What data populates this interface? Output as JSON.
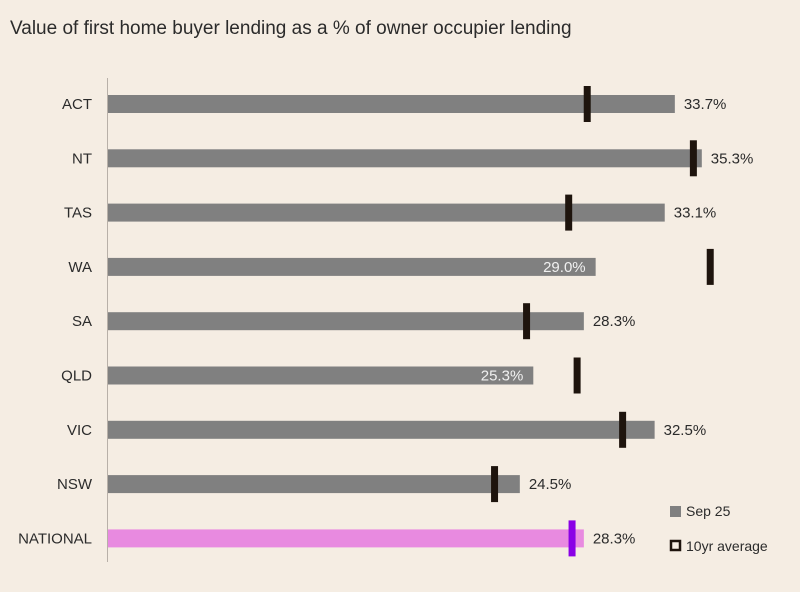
{
  "chart_data": {
    "type": "bar",
    "orientation": "horizontal",
    "title": "Value of first home buyer lending as a % of owner occupier lending",
    "categories": [
      "ACT",
      "NT",
      "TAS",
      "WA",
      "SA",
      "QLD",
      "VIC",
      "NSW",
      "NATIONAL"
    ],
    "value_labels": [
      "33.7%",
      "35.3%",
      "33.1%",
      "29.0%",
      "28.3%",
      "25.3%",
      "32.5%",
      "24.5%",
      "28.3%"
    ],
    "series": [
      {
        "name": "Sep 25",
        "values": [
          33.7,
          35.3,
          33.1,
          29.0,
          28.3,
          25.3,
          32.5,
          24.5,
          28.3
        ]
      },
      {
        "name": "10yr average",
        "values": [
          28.5,
          34.8,
          27.4,
          35.8,
          24.9,
          27.9,
          30.6,
          23.0,
          27.6
        ]
      }
    ],
    "highlight_category": "NATIONAL",
    "xlim": [
      0,
      45
    ],
    "colors": {
      "bar": "#808080",
      "bar_highlight": "#e88ae0",
      "marker": "#1e140d",
      "marker_highlight": "#8a00e6",
      "inside_label": "#f0f0f0",
      "outside_label": "#2b2b2b"
    },
    "legend_position": "bottom-right",
    "grid": false
  }
}
